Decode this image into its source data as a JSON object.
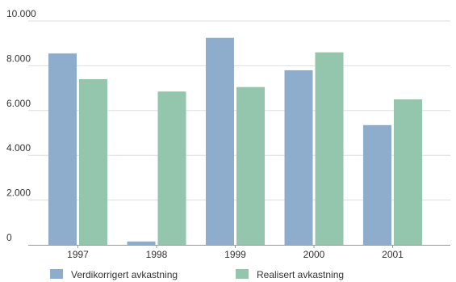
{
  "chart_data": {
    "type": "bar",
    "categories": [
      "1997",
      "1998",
      "1999",
      "2000",
      "2001"
    ],
    "series": [
      {
        "name": "Verdikorrigert avkastning",
        "values": [
          8550,
          150,
          9250,
          7800,
          5350
        ],
        "color": "#8eadcc"
      },
      {
        "name": "Realisert avkastning",
        "values": [
          7400,
          6850,
          7050,
          8600,
          6500
        ],
        "color": "#93c6ad"
      }
    ],
    "yticks": [
      0,
      2000,
      4000,
      6000,
      8000,
      10000
    ],
    "ytick_labels": [
      "0",
      "2.000",
      "4.000",
      "6.000",
      "8.000",
      "10.000"
    ],
    "ylim": [
      0,
      10000
    ],
    "grid": true,
    "grid_color": "#dddddd",
    "legend_position": "bottom-left",
    "title": "",
    "xlabel": "",
    "ylabel": ""
  }
}
